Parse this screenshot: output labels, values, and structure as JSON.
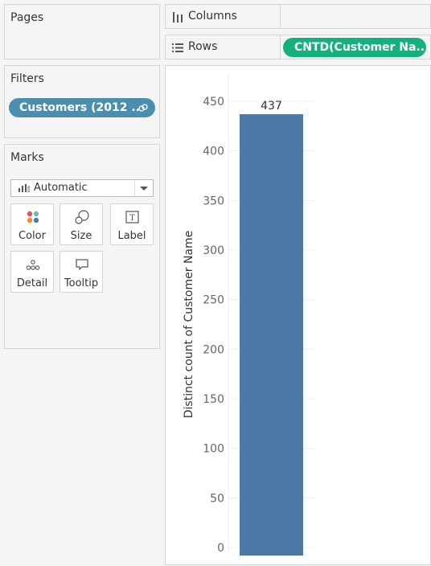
{
  "pages": {
    "title": "Pages"
  },
  "filters": {
    "title": "Filters",
    "pill_label": "Customers (2012 ..",
    "pill_icon": "link-icon"
  },
  "marks": {
    "title": "Marks",
    "mark_type": "Automatic",
    "buttons": {
      "color": "Color",
      "size": "Size",
      "label": "Label",
      "detail": "Detail",
      "tooltip": "Tooltip"
    }
  },
  "shelves": {
    "columns": {
      "label": "Columns",
      "icon": "columns-icon"
    },
    "rows": {
      "label": "Rows",
      "icon": "rows-icon",
      "pill_label": "CNTD(Customer Na.."
    }
  },
  "colors": {
    "bar": "#4e79a7",
    "filter_pill": "#4a8fb0",
    "rows_pill": "#14b07d"
  },
  "chart_data": {
    "type": "bar",
    "categories": [
      ""
    ],
    "values": [
      437
    ],
    "data_labels": [
      "437"
    ],
    "ylabel": "Distinct count of Customer Name",
    "xlabel": "",
    "ylim": [
      0,
      450
    ],
    "yticks": [
      0,
      50,
      100,
      150,
      200,
      250,
      300,
      350,
      400,
      450
    ],
    "grid": true
  }
}
